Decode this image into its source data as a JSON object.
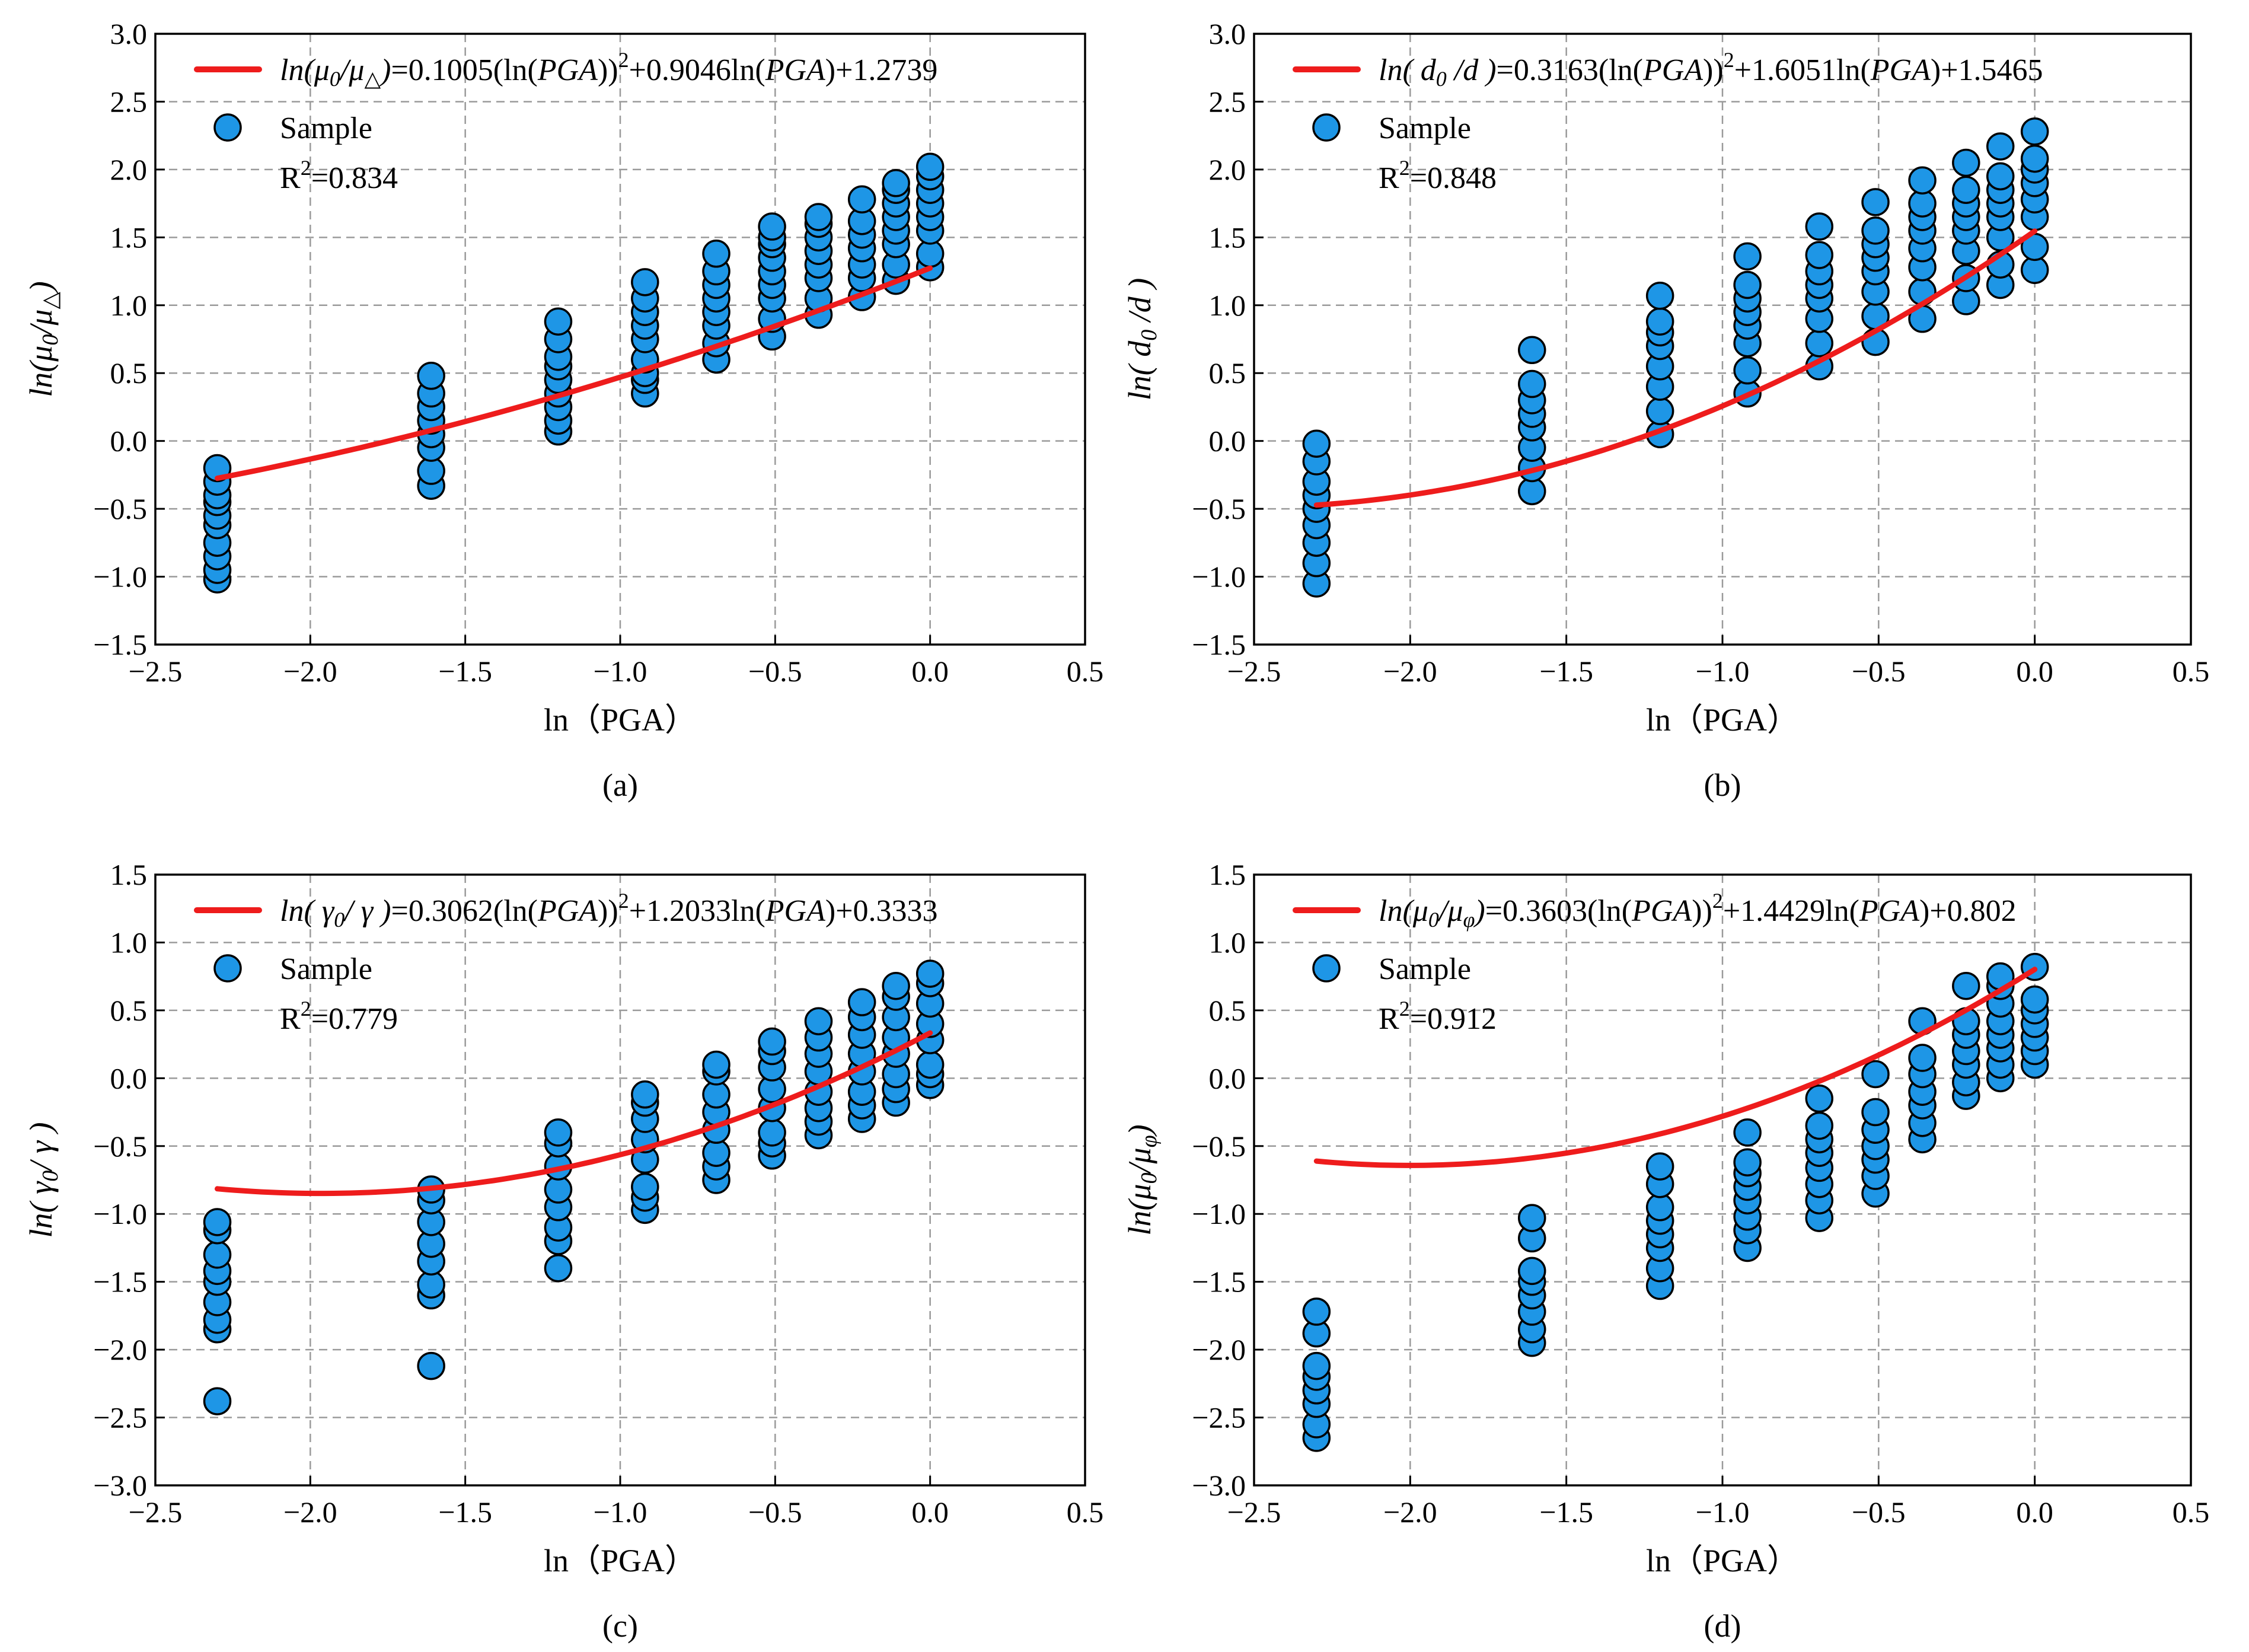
{
  "figure_title": "Regression of damage indices against ln(PGA)",
  "colors": {
    "sample": "#1e96e6",
    "fit": "#ee1c1c",
    "grid": "#9a9a9a",
    "axis": "#000000"
  },
  "chart_data": [
    {
      "id": "a",
      "type": "scatter",
      "caption": "(a)",
      "xlabel": "ln（PGA）",
      "ylabel": {
        "pre": "ln(",
        "sym": "μ",
        "sub": "0",
        "mid": "/",
        "sym2": "μ",
        "sub2": "△",
        "post": ")"
      },
      "xlim": [
        -2.5,
        0.5
      ],
      "ylim": [
        -1.5,
        3.0
      ],
      "xticks": [
        -2.5,
        -2.0,
        -1.5,
        -1.0,
        -0.5,
        0.0,
        0.5
      ],
      "yticks": [
        -1.5,
        -1.0,
        -0.5,
        0.0,
        0.5,
        1.0,
        1.5,
        2.0,
        2.5,
        3.0
      ],
      "xtick_labels": [
        "−2.5",
        "−2.0",
        "−1.5",
        "−1.0",
        "−0.5",
        "0.0",
        "0.5"
      ],
      "ytick_labels": [
        "−1.5",
        "−1.0",
        "−0.5",
        "0.0",
        "0.5",
        "1.0",
        "1.5",
        "2.0",
        "2.5",
        "3.0"
      ],
      "legend": {
        "fit_label": {
          "pre": "ln(",
          "sym": "μ",
          "sub": "0",
          "mid": "/",
          "sym2": "μ",
          "sub2": "△",
          "post": ")",
          "eq_a": "=0.1005(ln(",
          "pga1": "PGA",
          "eq_b": "))",
          "sup": "2",
          "eq_c": "+0.9046ln(",
          "pga2": "PGA",
          "eq_d": ")+1.2739"
        },
        "sample_label": "Sample",
        "r2_label": "R",
        "r2_sup": "2",
        "r2_value": "=0.834"
      },
      "fit": {
        "a": 0.1005,
        "b": 0.9046,
        "c": 1.2739,
        "x_range": [
          -2.3,
          0.0
        ]
      },
      "series": [
        {
          "x": -2.3,
          "y": [
            -1.02,
            -0.95,
            -0.85,
            -0.75,
            -0.62,
            -0.55,
            -0.45,
            -0.4,
            -0.3,
            -0.2
          ]
        },
        {
          "x": -1.61,
          "y": [
            -0.33,
            -0.22,
            -0.05,
            0.05,
            0.15,
            0.25,
            0.35,
            0.48
          ]
        },
        {
          "x": -1.2,
          "y": [
            0.07,
            0.15,
            0.25,
            0.35,
            0.45,
            0.55,
            0.62,
            0.75,
            0.88
          ]
        },
        {
          "x": -0.92,
          "y": [
            0.35,
            0.45,
            0.5,
            0.6,
            0.75,
            0.85,
            0.95,
            1.05,
            1.17
          ]
        },
        {
          "x": -0.69,
          "y": [
            0.6,
            0.72,
            0.85,
            0.95,
            1.05,
            1.15,
            1.25,
            1.38
          ]
        },
        {
          "x": -0.51,
          "y": [
            0.77,
            0.9,
            1.05,
            1.15,
            1.25,
            1.35,
            1.45,
            1.5,
            1.58
          ]
        },
        {
          "x": -0.36,
          "y": [
            0.93,
            1.05,
            1.2,
            1.3,
            1.4,
            1.5,
            1.6,
            1.65
          ]
        },
        {
          "x": -0.22,
          "y": [
            1.06,
            1.2,
            1.3,
            1.42,
            1.52,
            1.62,
            1.78
          ]
        },
        {
          "x": -0.11,
          "y": [
            1.18,
            1.3,
            1.45,
            1.55,
            1.65,
            1.75,
            1.85,
            1.9
          ]
        },
        {
          "x": 0.0,
          "y": [
            1.28,
            1.38,
            1.55,
            1.65,
            1.75,
            1.85,
            1.95,
            2.02
          ]
        }
      ]
    },
    {
      "id": "b",
      "type": "scatter",
      "caption": "(b)",
      "xlabel": "ln（PGA）",
      "ylabel": {
        "pre": "ln( ",
        "sym": "d",
        "sub": "0",
        "mid": " /",
        "sym2": "d",
        "sub2": "",
        "post": " )"
      },
      "xlim": [
        -2.5,
        0.5
      ],
      "ylim": [
        -1.5,
        3.0
      ],
      "xticks": [
        -2.5,
        -2.0,
        -1.5,
        -1.0,
        -0.5,
        0.0,
        0.5
      ],
      "yticks": [
        -1.5,
        -1.0,
        -0.5,
        0.0,
        0.5,
        1.0,
        1.5,
        2.0,
        2.5,
        3.0
      ],
      "xtick_labels": [
        "−2.5",
        "−2.0",
        "−1.5",
        "−1.0",
        "−0.5",
        "0.0",
        "0.5"
      ],
      "ytick_labels": [
        "−1.5",
        "−1.0",
        "−0.5",
        "0.0",
        "0.5",
        "1.0",
        "1.5",
        "2.0",
        "2.5",
        "3.0"
      ],
      "legend": {
        "fit_label": {
          "pre": "ln( ",
          "sym": "d",
          "sub": "0",
          "mid": " /",
          "sym2": "d",
          "sub2": "",
          "post": " )",
          "eq_a": "=0.3163(ln(",
          "pga1": "PGA",
          "eq_b": "))",
          "sup": "2",
          "eq_c": "+1.6051ln(",
          "pga2": "PGA",
          "eq_d": ")+1.5465"
        },
        "sample_label": "Sample",
        "r2_label": "R",
        "r2_sup": "2",
        "r2_value": "=0.848"
      },
      "fit": {
        "a": 0.3163,
        "b": 1.6051,
        "c": 1.5465,
        "x_range": [
          -2.3,
          0.0
        ]
      },
      "series": [
        {
          "x": -2.3,
          "y": [
            -1.05,
            -0.9,
            -0.75,
            -0.62,
            -0.5,
            -0.4,
            -0.3,
            -0.15,
            -0.02
          ]
        },
        {
          "x": -1.61,
          "y": [
            -0.37,
            -0.2,
            -0.05,
            0.1,
            0.2,
            0.3,
            0.42,
            0.67
          ]
        },
        {
          "x": -1.2,
          "y": [
            0.05,
            0.22,
            0.4,
            0.55,
            0.7,
            0.8,
            0.88,
            1.07
          ]
        },
        {
          "x": -0.92,
          "y": [
            0.35,
            0.52,
            0.72,
            0.85,
            0.95,
            1.05,
            1.15,
            1.36
          ]
        },
        {
          "x": -0.69,
          "y": [
            0.55,
            0.72,
            0.9,
            1.05,
            1.15,
            1.25,
            1.37,
            1.58
          ]
        },
        {
          "x": -0.51,
          "y": [
            0.73,
            0.92,
            1.1,
            1.25,
            1.35,
            1.45,
            1.55,
            1.76
          ]
        },
        {
          "x": -0.36,
          "y": [
            0.9,
            1.1,
            1.28,
            1.42,
            1.55,
            1.65,
            1.75,
            1.92
          ]
        },
        {
          "x": -0.22,
          "y": [
            1.03,
            1.2,
            1.4,
            1.55,
            1.65,
            1.75,
            1.85,
            2.05
          ]
        },
        {
          "x": -0.11,
          "y": [
            1.15,
            1.3,
            1.5,
            1.65,
            1.75,
            1.85,
            1.95,
            2.17
          ]
        },
        {
          "x": 0.0,
          "y": [
            1.26,
            1.43,
            1.65,
            1.78,
            1.9,
            2.0,
            2.08,
            2.28
          ]
        }
      ]
    },
    {
      "id": "c",
      "type": "scatter",
      "caption": "(c)",
      "xlabel": "ln（PGA）",
      "ylabel": {
        "pre": "ln( ",
        "sym": "γ",
        "sub": "0",
        "mid": "/ ",
        "sym2": "γ",
        "sub2": "",
        "post": " )"
      },
      "xlim": [
        -2.5,
        0.5
      ],
      "ylim": [
        -3.0,
        1.5
      ],
      "xticks": [
        -2.5,
        -2.0,
        -1.5,
        -1.0,
        -0.5,
        0.0,
        0.5
      ],
      "yticks": [
        -3.0,
        -2.5,
        -2.0,
        -1.5,
        -1.0,
        -0.5,
        0.0,
        0.5,
        1.0,
        1.5
      ],
      "xtick_labels": [
        "−2.5",
        "−2.0",
        "−1.5",
        "−1.0",
        "−0.5",
        "0.0",
        "0.5"
      ],
      "ytick_labels": [
        "−3.0",
        "−2.5",
        "−2.0",
        "−1.5",
        "−1.0",
        "−0.5",
        "0.0",
        "0.5",
        "1.0",
        "1.5"
      ],
      "legend": {
        "fit_label": {
          "pre": "ln( ",
          "sym": "γ",
          "sub": "0",
          "mid": "/ ",
          "sym2": "γ",
          "sub2": "",
          "post": " )",
          "eq_a": "=0.3062(ln(",
          "pga1": "PGA",
          "eq_b": "))",
          "sup": "2",
          "eq_c": "+1.2033ln(",
          "pga2": "PGA",
          "eq_d": ")+0.3333"
        },
        "sample_label": "Sample",
        "r2_label": "R",
        "r2_sup": "2",
        "r2_value": "=0.779"
      },
      "fit": {
        "a": 0.3062,
        "b": 1.2033,
        "c": 0.3333,
        "x_range": [
          -2.3,
          0.0
        ]
      },
      "series": [
        {
          "x": -2.3,
          "y": [
            -2.38,
            -1.85,
            -1.78,
            -1.65,
            -1.5,
            -1.42,
            -1.3,
            -1.12,
            -1.06
          ]
        },
        {
          "x": -1.61,
          "y": [
            -2.12,
            -1.6,
            -1.52,
            -1.35,
            -1.22,
            -1.06,
            -0.9,
            -0.82
          ]
        },
        {
          "x": -1.2,
          "y": [
            -1.4,
            -1.2,
            -1.1,
            -0.95,
            -0.82,
            -0.65,
            -0.48,
            -0.4
          ]
        },
        {
          "x": -0.92,
          "y": [
            -0.97,
            -0.88,
            -0.8,
            -0.6,
            -0.45,
            -0.3,
            -0.18,
            -0.12
          ]
        },
        {
          "x": -0.69,
          "y": [
            -0.75,
            -0.65,
            -0.55,
            -0.38,
            -0.25,
            -0.12,
            0.05,
            0.1
          ]
        },
        {
          "x": -0.51,
          "y": [
            -0.57,
            -0.48,
            -0.4,
            -0.22,
            -0.08,
            0.08,
            0.2,
            0.27
          ]
        },
        {
          "x": -0.36,
          "y": [
            -0.42,
            -0.32,
            -0.22,
            -0.1,
            0.05,
            0.18,
            0.3,
            0.42
          ]
        },
        {
          "x": -0.22,
          "y": [
            -0.3,
            -0.2,
            -0.1,
            0.05,
            0.18,
            0.32,
            0.45,
            0.56
          ]
        },
        {
          "x": -0.11,
          "y": [
            -0.18,
            -0.08,
            0.03,
            0.18,
            0.3,
            0.45,
            0.6,
            0.68
          ]
        },
        {
          "x": 0.0,
          "y": [
            -0.05,
            0.03,
            0.1,
            0.28,
            0.4,
            0.55,
            0.7,
            0.77
          ]
        }
      ]
    },
    {
      "id": "d",
      "type": "scatter",
      "caption": "(d)",
      "xlabel": "ln（PGA）",
      "ylabel": {
        "pre": "ln(",
        "sym": "μ",
        "sub": "0",
        "mid": "/",
        "sym2": "μ",
        "sub2": "φ",
        "post": ")"
      },
      "xlim": [
        -2.5,
        0.5
      ],
      "ylim": [
        -3.0,
        1.5
      ],
      "xticks": [
        -2.5,
        -2.0,
        -1.5,
        -1.0,
        -0.5,
        0.0,
        0.5
      ],
      "yticks": [
        -3.0,
        -2.5,
        -2.0,
        -1.5,
        -1.0,
        -0.5,
        0.0,
        0.5,
        1.0,
        1.5
      ],
      "xtick_labels": [
        "−2.5",
        "−2.0",
        "−1.5",
        "−1.0",
        "−0.5",
        "0.0",
        "0.5"
      ],
      "ytick_labels": [
        "−3.0",
        "−2.5",
        "−2.0",
        "−1.5",
        "−1.0",
        "−0.5",
        "0.0",
        "0.5",
        "1.0",
        "1.5"
      ],
      "legend": {
        "fit_label": {
          "pre": "ln(",
          "sym": "μ",
          "sub": "0",
          "mid": "/",
          "sym2": "μ",
          "sub2": "φ",
          "post": ")",
          "eq_a": "=0.3603(ln(",
          "pga1": "PGA",
          "eq_b": "))",
          "sup": "2",
          "eq_c": "+1.4429ln(",
          "pga2": "PGA",
          "eq_d": ")+0.802"
        },
        "sample_label": "Sample",
        "r2_label": "R",
        "r2_sup": "2",
        "r2_value": "=0.912"
      },
      "fit": {
        "a": 0.3603,
        "b": 1.4429,
        "c": 0.802,
        "x_range": [
          -2.3,
          0.0
        ]
      },
      "series": [
        {
          "x": -2.3,
          "y": [
            -2.65,
            -2.55,
            -2.4,
            -2.3,
            -2.2,
            -2.12,
            -1.88,
            -1.72
          ]
        },
        {
          "x": -1.61,
          "y": [
            -1.95,
            -1.85,
            -1.72,
            -1.6,
            -1.5,
            -1.42,
            -1.18,
            -1.03
          ]
        },
        {
          "x": -1.2,
          "y": [
            -1.53,
            -1.4,
            -1.25,
            -1.15,
            -1.05,
            -0.95,
            -0.78,
            -0.65
          ]
        },
        {
          "x": -0.92,
          "y": [
            -1.25,
            -1.12,
            -1.02,
            -0.9,
            -0.8,
            -0.7,
            -0.62,
            -0.4
          ]
        },
        {
          "x": -0.69,
          "y": [
            -1.03,
            -0.9,
            -0.78,
            -0.66,
            -0.55,
            -0.45,
            -0.35,
            -0.15
          ]
        },
        {
          "x": -0.51,
          "y": [
            -0.85,
            -0.72,
            -0.6,
            -0.5,
            -0.38,
            -0.25,
            0.03
          ]
        },
        {
          "x": -0.36,
          "y": [
            -0.45,
            -0.33,
            -0.2,
            -0.1,
            0.03,
            0.15,
            0.42
          ]
        },
        {
          "x": -0.22,
          "y": [
            -0.13,
            -0.03,
            0.1,
            0.2,
            0.32,
            0.42,
            0.68
          ]
        },
        {
          "x": -0.11,
          "y": [
            0.0,
            0.1,
            0.22,
            0.32,
            0.42,
            0.55,
            0.68,
            0.75
          ]
        },
        {
          "x": 0.0,
          "y": [
            0.1,
            0.2,
            0.3,
            0.4,
            0.5,
            0.58,
            0.82
          ]
        }
      ]
    }
  ]
}
